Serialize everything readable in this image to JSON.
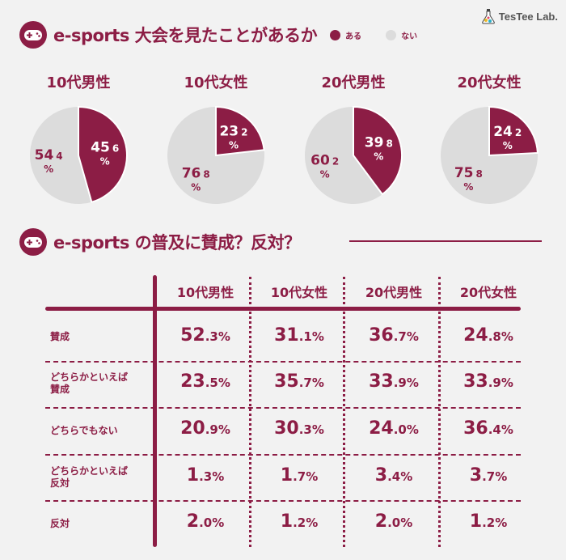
{
  "brand": {
    "name": "TesTee Lab."
  },
  "colors": {
    "accent": "#8c1d45",
    "neutral": "#dcdcdc"
  },
  "section1": {
    "title": "e-sports 大会を見たことがあるか",
    "legend": [
      {
        "label": "ある",
        "color": "#8c1d45"
      },
      {
        "label": "ない",
        "color": "#dcdcdc"
      }
    ]
  },
  "section2": {
    "title": "e-sports の普及に賛成？反対？"
  },
  "chart_data": [
    {
      "type": "pie",
      "title": "10代男性",
      "series": [
        {
          "name": "ある",
          "value": 45.6,
          "int": "45",
          "dec": "6"
        },
        {
          "name": "ない",
          "value": 54.4,
          "int": "54",
          "dec": "4"
        }
      ]
    },
    {
      "type": "pie",
      "title": "10代女性",
      "series": [
        {
          "name": "ある",
          "value": 23.2,
          "int": "23",
          "dec": "2"
        },
        {
          "name": "ない",
          "value": 76.8,
          "int": "76",
          "dec": "8"
        }
      ]
    },
    {
      "type": "pie",
      "title": "20代男性",
      "series": [
        {
          "name": "ある",
          "value": 39.8,
          "int": "39",
          "dec": "8"
        },
        {
          "name": "ない",
          "value": 60.2,
          "int": "60",
          "dec": "2"
        }
      ]
    },
    {
      "type": "pie",
      "title": "20代女性",
      "series": [
        {
          "name": "ある",
          "value": 24.2,
          "int": "24",
          "dec": "2"
        },
        {
          "name": "ない",
          "value": 75.8,
          "int": "75",
          "dec": "8"
        }
      ]
    },
    {
      "type": "table",
      "columns": [
        "10代男性",
        "10代女性",
        "20代男性",
        "20代女性"
      ],
      "rows": [
        {
          "label": [
            "賛成"
          ],
          "values": [
            {
              "i": "52",
              "d": ".3%"
            },
            {
              "i": "31",
              "d": ".1%"
            },
            {
              "i": "36",
              "d": ".7%"
            },
            {
              "i": "24",
              "d": ".8%"
            }
          ]
        },
        {
          "label": [
            "どちらかといえば",
            "賛成"
          ],
          "values": [
            {
              "i": "23",
              "d": ".5%"
            },
            {
              "i": "35",
              "d": ".7%"
            },
            {
              "i": "33",
              "d": ".9%"
            },
            {
              "i": "33",
              "d": ".9%"
            }
          ]
        },
        {
          "label": [
            "どちらでもない"
          ],
          "values": [
            {
              "i": "20",
              "d": ".9%"
            },
            {
              "i": "30",
              "d": ".3%"
            },
            {
              "i": "24",
              "d": ".0%"
            },
            {
              "i": "36",
              "d": ".4%"
            }
          ]
        },
        {
          "label": [
            "どちらかといえば",
            "反対"
          ],
          "values": [
            {
              "i": "1",
              "d": ".3%"
            },
            {
              "i": "1",
              "d": ".7%"
            },
            {
              "i": "3",
              "d": ".4%"
            },
            {
              "i": "3",
              "d": ".7%"
            }
          ]
        },
        {
          "label": [
            "反対"
          ],
          "values": [
            {
              "i": "2",
              "d": ".0%"
            },
            {
              "i": "1",
              "d": ".2%"
            },
            {
              "i": "2",
              "d": ".0%"
            },
            {
              "i": "1",
              "d": ".2%"
            }
          ]
        }
      ]
    }
  ]
}
